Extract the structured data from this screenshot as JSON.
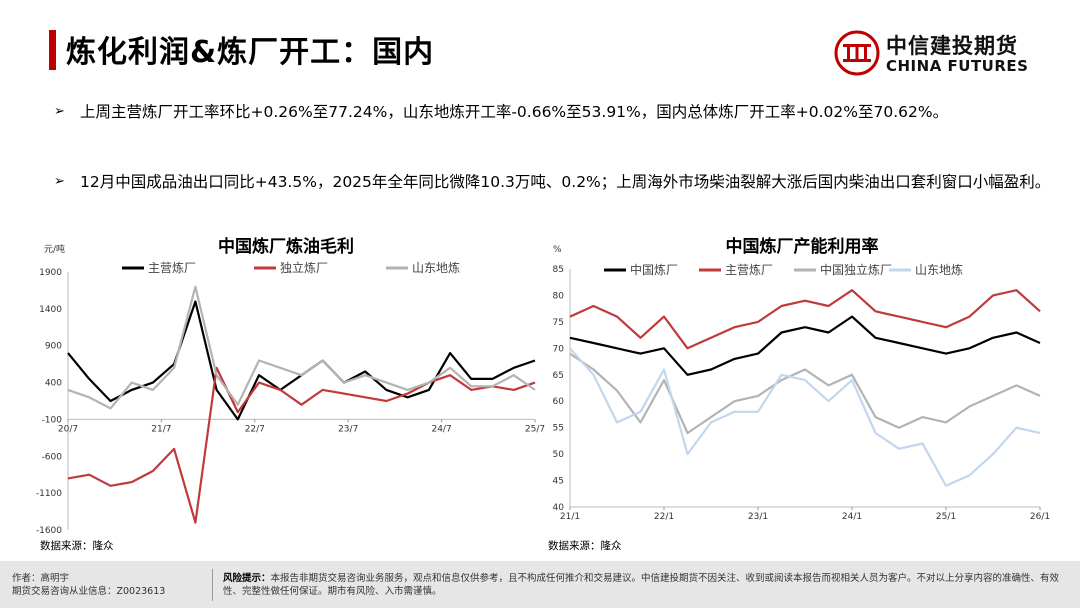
{
  "title": "炼化利润&炼厂开工：国内",
  "logo": {
    "cn": "中信建投期货",
    "en": "CHINA FUTURES"
  },
  "bullets": [
    {
      "arrow": "➢",
      "text": "上周主营炼厂开工率环比+0.26%至77.24%，山东地炼开工率-0.66%至53.91%，国内总体炼厂开工率+0.02%至70.62%。"
    },
    {
      "arrow": "➢",
      "text": "12月中国成品油出口同比+43.5%，2025年全年同比微降10.3万吨、0.2%；上周海外市场柴油裂解大涨后国内柴油出口套利窗口小幅盈利。"
    }
  ],
  "colors": {
    "black": "#000000",
    "red": "#c0393b",
    "gray": "#b3b3b3",
    "lightblue": "#c2d7ee",
    "brand": "#c00000"
  },
  "chart_data": [
    {
      "type": "line",
      "title": "中国炼厂炼油毛利",
      "ylabel": "元/吨",
      "ylim": [
        -1600,
        1900
      ],
      "yticks": [
        1900,
        1400,
        900,
        400,
        -100,
        -600,
        -1100,
        -1600
      ],
      "xticks": [
        "20/7",
        "21/7",
        "22/7",
        "23/7",
        "24/7",
        "25/7"
      ],
      "x": [
        "20/7",
        "20/10",
        "21/1",
        "21/4",
        "21/7",
        "21/10",
        "22/1",
        "22/4",
        "22/7",
        "22/10",
        "23/1",
        "23/4",
        "23/7",
        "23/10",
        "24/1",
        "24/4",
        "24/7",
        "24/10",
        "25/1",
        "25/4",
        "25/7",
        "25/10",
        "26/1"
      ],
      "series": [
        {
          "name": "主营炼厂",
          "color": "#000000",
          "values": [
            800,
            450,
            150,
            300,
            400,
            650,
            1500,
            300,
            -100,
            500,
            300,
            500,
            700,
            400,
            550,
            300,
            200,
            300,
            800,
            450,
            450,
            600,
            700
          ]
        },
        {
          "name": "独立炼厂",
          "color": "#c0393b",
          "values": [
            -900,
            -850,
            -1000,
            -950,
            -800,
            -500,
            -1500,
            600,
            0,
            400,
            300,
            100,
            300,
            250,
            200,
            150,
            250,
            400,
            500,
            300,
            350,
            300,
            400
          ]
        },
        {
          "name": "山东地炼",
          "color": "#b3b3b3",
          "values": [
            300,
            200,
            50,
            400,
            300,
            600,
            1700,
            500,
            100,
            700,
            600,
            500,
            700,
            400,
            500,
            400,
            300,
            400,
            600,
            350,
            350,
            500,
            300
          ]
        }
      ]
    },
    {
      "type": "line",
      "title": "中国炼厂产能利用率",
      "ylabel": "%",
      "ylim": [
        40,
        85
      ],
      "yticks": [
        85,
        80,
        75,
        70,
        65,
        60,
        55,
        50,
        45,
        40
      ],
      "xticks": [
        "21/1",
        "22/1",
        "23/1",
        "24/1",
        "25/1",
        "26/1"
      ],
      "x": [
        "21/1",
        "21/4",
        "21/7",
        "21/10",
        "22/1",
        "22/4",
        "22/7",
        "22/10",
        "23/1",
        "23/4",
        "23/7",
        "23/10",
        "24/1",
        "24/4",
        "24/7",
        "24/10",
        "25/1",
        "25/4",
        "25/7",
        "25/10",
        "26/1"
      ],
      "series": [
        {
          "name": "中国炼厂",
          "color": "#000000",
          "values": [
            72,
            71,
            70,
            69,
            70,
            65,
            66,
            68,
            69,
            73,
            74,
            73,
            76,
            72,
            71,
            70,
            69,
            70,
            72,
            73,
            71
          ]
        },
        {
          "name": "主营炼厂",
          "color": "#c0393b",
          "values": [
            76,
            78,
            76,
            72,
            76,
            70,
            72,
            74,
            75,
            78,
            79,
            78,
            81,
            77,
            76,
            75,
            74,
            76,
            80,
            81,
            77
          ]
        },
        {
          "name": "中国独立炼厂",
          "color": "#b3b3b3",
          "values": [
            69,
            66,
            62,
            56,
            64,
            54,
            57,
            60,
            61,
            64,
            66,
            63,
            65,
            57,
            55,
            57,
            56,
            59,
            61,
            63,
            61
          ]
        },
        {
          "name": "山东地炼",
          "color": "#c2d7ee",
          "values": [
            70,
            65,
            56,
            58,
            66,
            50,
            56,
            58,
            58,
            65,
            64,
            60,
            64,
            54,
            51,
            52,
            44,
            46,
            50,
            55,
            54
          ]
        }
      ]
    }
  ],
  "sources": [
    "数据来源：隆众",
    "数据来源：隆众"
  ],
  "footer": {
    "author": "作者：高明宇",
    "license": "期货交易咨询从业信息：Z0023613",
    "risk_label": "风险提示：",
    "risk_text": "本报告非期货交易咨询业务服务，观点和信息仅供参考，且不构成任何推介和交易建议。中信建投期货不因关注、收到或阅读本报告而视相关人员为客户。不对以上分享内容的准确性、有效性、完整性做任何保证。期市有风险、入市需谨慎。"
  }
}
